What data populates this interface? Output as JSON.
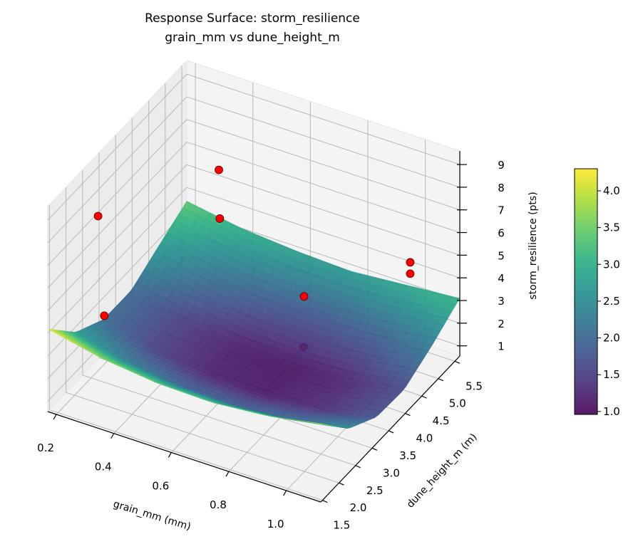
{
  "chart_data": {
    "type": "surface",
    "title": [
      "Response Surface: storm_resilience",
      "grain_mm vs dune_height_m"
    ],
    "xlabel": "grain_mm (mm)",
    "ylabel": "dune_height_m (m)",
    "zlabel": "storm_resilience (pts)",
    "xlim": [
      0.17,
      1.12
    ],
    "ylim": [
      1.45,
      5.65
    ],
    "zlim": [
      0.55,
      9.6
    ],
    "xticks": [
      "0.2",
      "0.4",
      "0.6",
      "0.8",
      "1.0"
    ],
    "yticks": [
      "1.5",
      "2.0",
      "2.5",
      "3.0",
      "3.5",
      "4.0",
      "4.5",
      "5.0",
      "5.5"
    ],
    "zticks": [
      "1",
      "2",
      "3",
      "4",
      "5",
      "6",
      "7",
      "8",
      "9"
    ],
    "grid": true,
    "colormap": "viridis",
    "surface": {
      "x": [
        0.17,
        0.36,
        0.55,
        0.74,
        0.93,
        1.12
      ],
      "y": [
        1.45,
        2.29,
        3.13,
        3.97,
        4.81,
        5.65
      ],
      "z": [
        [
          4.2,
          2.76,
          2.04,
          2.03,
          2.73,
          3.4
        ],
        [
          3.68,
          2.23,
          1.49,
          1.47,
          2.16,
          3.0
        ],
        [
          3.4,
          1.93,
          1.18,
          1.15,
          1.83,
          2.8
        ],
        [
          3.35,
          1.88,
          1.12,
          1.07,
          1.75,
          2.7
        ],
        [
          3.56,
          2.07,
          1.3,
          1.24,
          1.9,
          2.9
        ],
        [
          4.01,
          2.5,
          1.72,
          1.65,
          2.3,
          3.1
        ]
      ]
    },
    "points": {
      "color": "#ff0000",
      "x": [
        0.33,
        0.2,
        0.43,
        0.27,
        0.82,
        0.77,
        1.02,
        1.02
      ],
      "y": [
        5.23,
        2.71,
        4.39,
        2.29,
        3.55,
        3.97,
        5.02,
        5.02
      ],
      "z": [
        6.09,
        7.37,
        5.65,
        3.91,
        5.14,
        2.06,
        5.23,
        4.73
      ]
    },
    "colorbar": {
      "range": [
        0.96,
        4.3
      ],
      "ticks": [
        "1.0",
        "1.5",
        "2.0",
        "2.5",
        "3.0",
        "3.5",
        "4.0"
      ],
      "position": "right"
    }
  }
}
